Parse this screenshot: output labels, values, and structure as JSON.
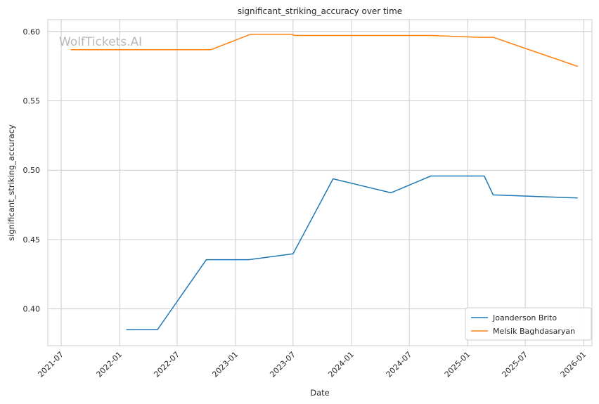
{
  "watermark": "WolfTickets.AI",
  "chart_data": {
    "type": "line",
    "title": "significant_striking_accuracy over time",
    "xlabel": "Date",
    "ylabel": "significant_striking_accuracy",
    "x_range": [
      "2021-05-20",
      "2026-01-27"
    ],
    "ylim": [
      0.3735,
      0.6085
    ],
    "x_ticks": [
      "2021-07",
      "2022-01",
      "2022-07",
      "2023-01",
      "2023-07",
      "2024-01",
      "2024-07",
      "2025-01",
      "2025-07",
      "2026-01"
    ],
    "y_ticks": [
      "0.40",
      "0.45",
      "0.50",
      "0.55",
      "0.60"
    ],
    "grid": true,
    "legend_position": "bottom-right",
    "series": [
      {
        "name": "Joanderson Brito",
        "color": "#1f77b4",
        "points": [
          [
            "2022-01-22",
            0.385
          ],
          [
            "2022-04-30",
            0.385
          ],
          [
            "2022-10-01",
            0.4355
          ],
          [
            "2023-02-11",
            0.4355
          ],
          [
            "2023-07-01",
            0.4397
          ],
          [
            "2023-11-04",
            0.4938
          ],
          [
            "2024-05-04",
            0.4837
          ],
          [
            "2024-09-07",
            0.4958
          ],
          [
            "2025-02-22",
            0.4958
          ],
          [
            "2025-03-22",
            0.4822
          ],
          [
            "2025-12-13",
            0.48
          ]
        ]
      },
      {
        "name": "Melsik Baghdasaryan",
        "color": "#ff7f0e",
        "points": [
          [
            "2021-07-31",
            0.5868
          ],
          [
            "2022-10-15",
            0.5868
          ],
          [
            "2023-02-18",
            0.598
          ],
          [
            "2023-06-24",
            0.598
          ],
          [
            "2023-07-08",
            0.5971
          ],
          [
            "2024-09-07",
            0.5971
          ],
          [
            "2025-02-08",
            0.5958
          ],
          [
            "2025-03-22",
            0.5958
          ],
          [
            "2025-12-13",
            0.5748
          ]
        ]
      }
    ]
  }
}
